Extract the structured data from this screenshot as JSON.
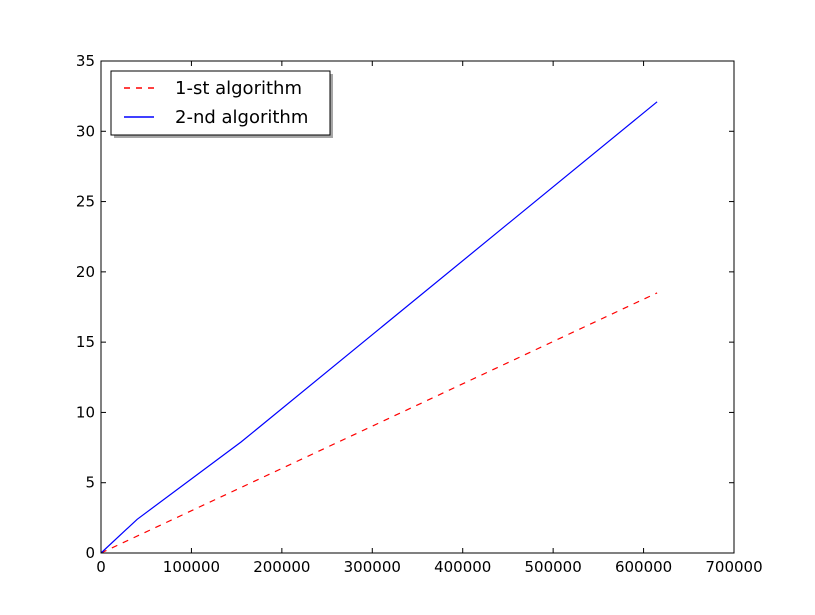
{
  "chart_data": {
    "type": "line",
    "title": "",
    "xlabel": "",
    "ylabel": "",
    "xlim": [
      0,
      700000
    ],
    "ylim": [
      0,
      35
    ],
    "x_ticks": [
      0,
      100000,
      200000,
      300000,
      400000,
      500000,
      600000,
      700000
    ],
    "x_tick_labels": [
      "0",
      "100000",
      "200000",
      "300000",
      "400000",
      "500000",
      "600000",
      "700000"
    ],
    "y_ticks": [
      0,
      5,
      10,
      15,
      20,
      25,
      30,
      35
    ],
    "y_tick_labels": [
      "0",
      "5",
      "10",
      "15",
      "20",
      "25",
      "30",
      "35"
    ],
    "grid": false,
    "legend_position": "top-left",
    "series": [
      {
        "name": "1-st algorithm",
        "color": "#ff0000",
        "style": "dashed",
        "x": [
          0,
          615000
        ],
        "y": [
          0,
          18.5
        ]
      },
      {
        "name": "2-nd algorithm",
        "color": "#0000ff",
        "style": "solid",
        "x": [
          0,
          40000,
          155000,
          615000
        ],
        "y": [
          0,
          2.4,
          7.9,
          32.1
        ]
      }
    ]
  }
}
